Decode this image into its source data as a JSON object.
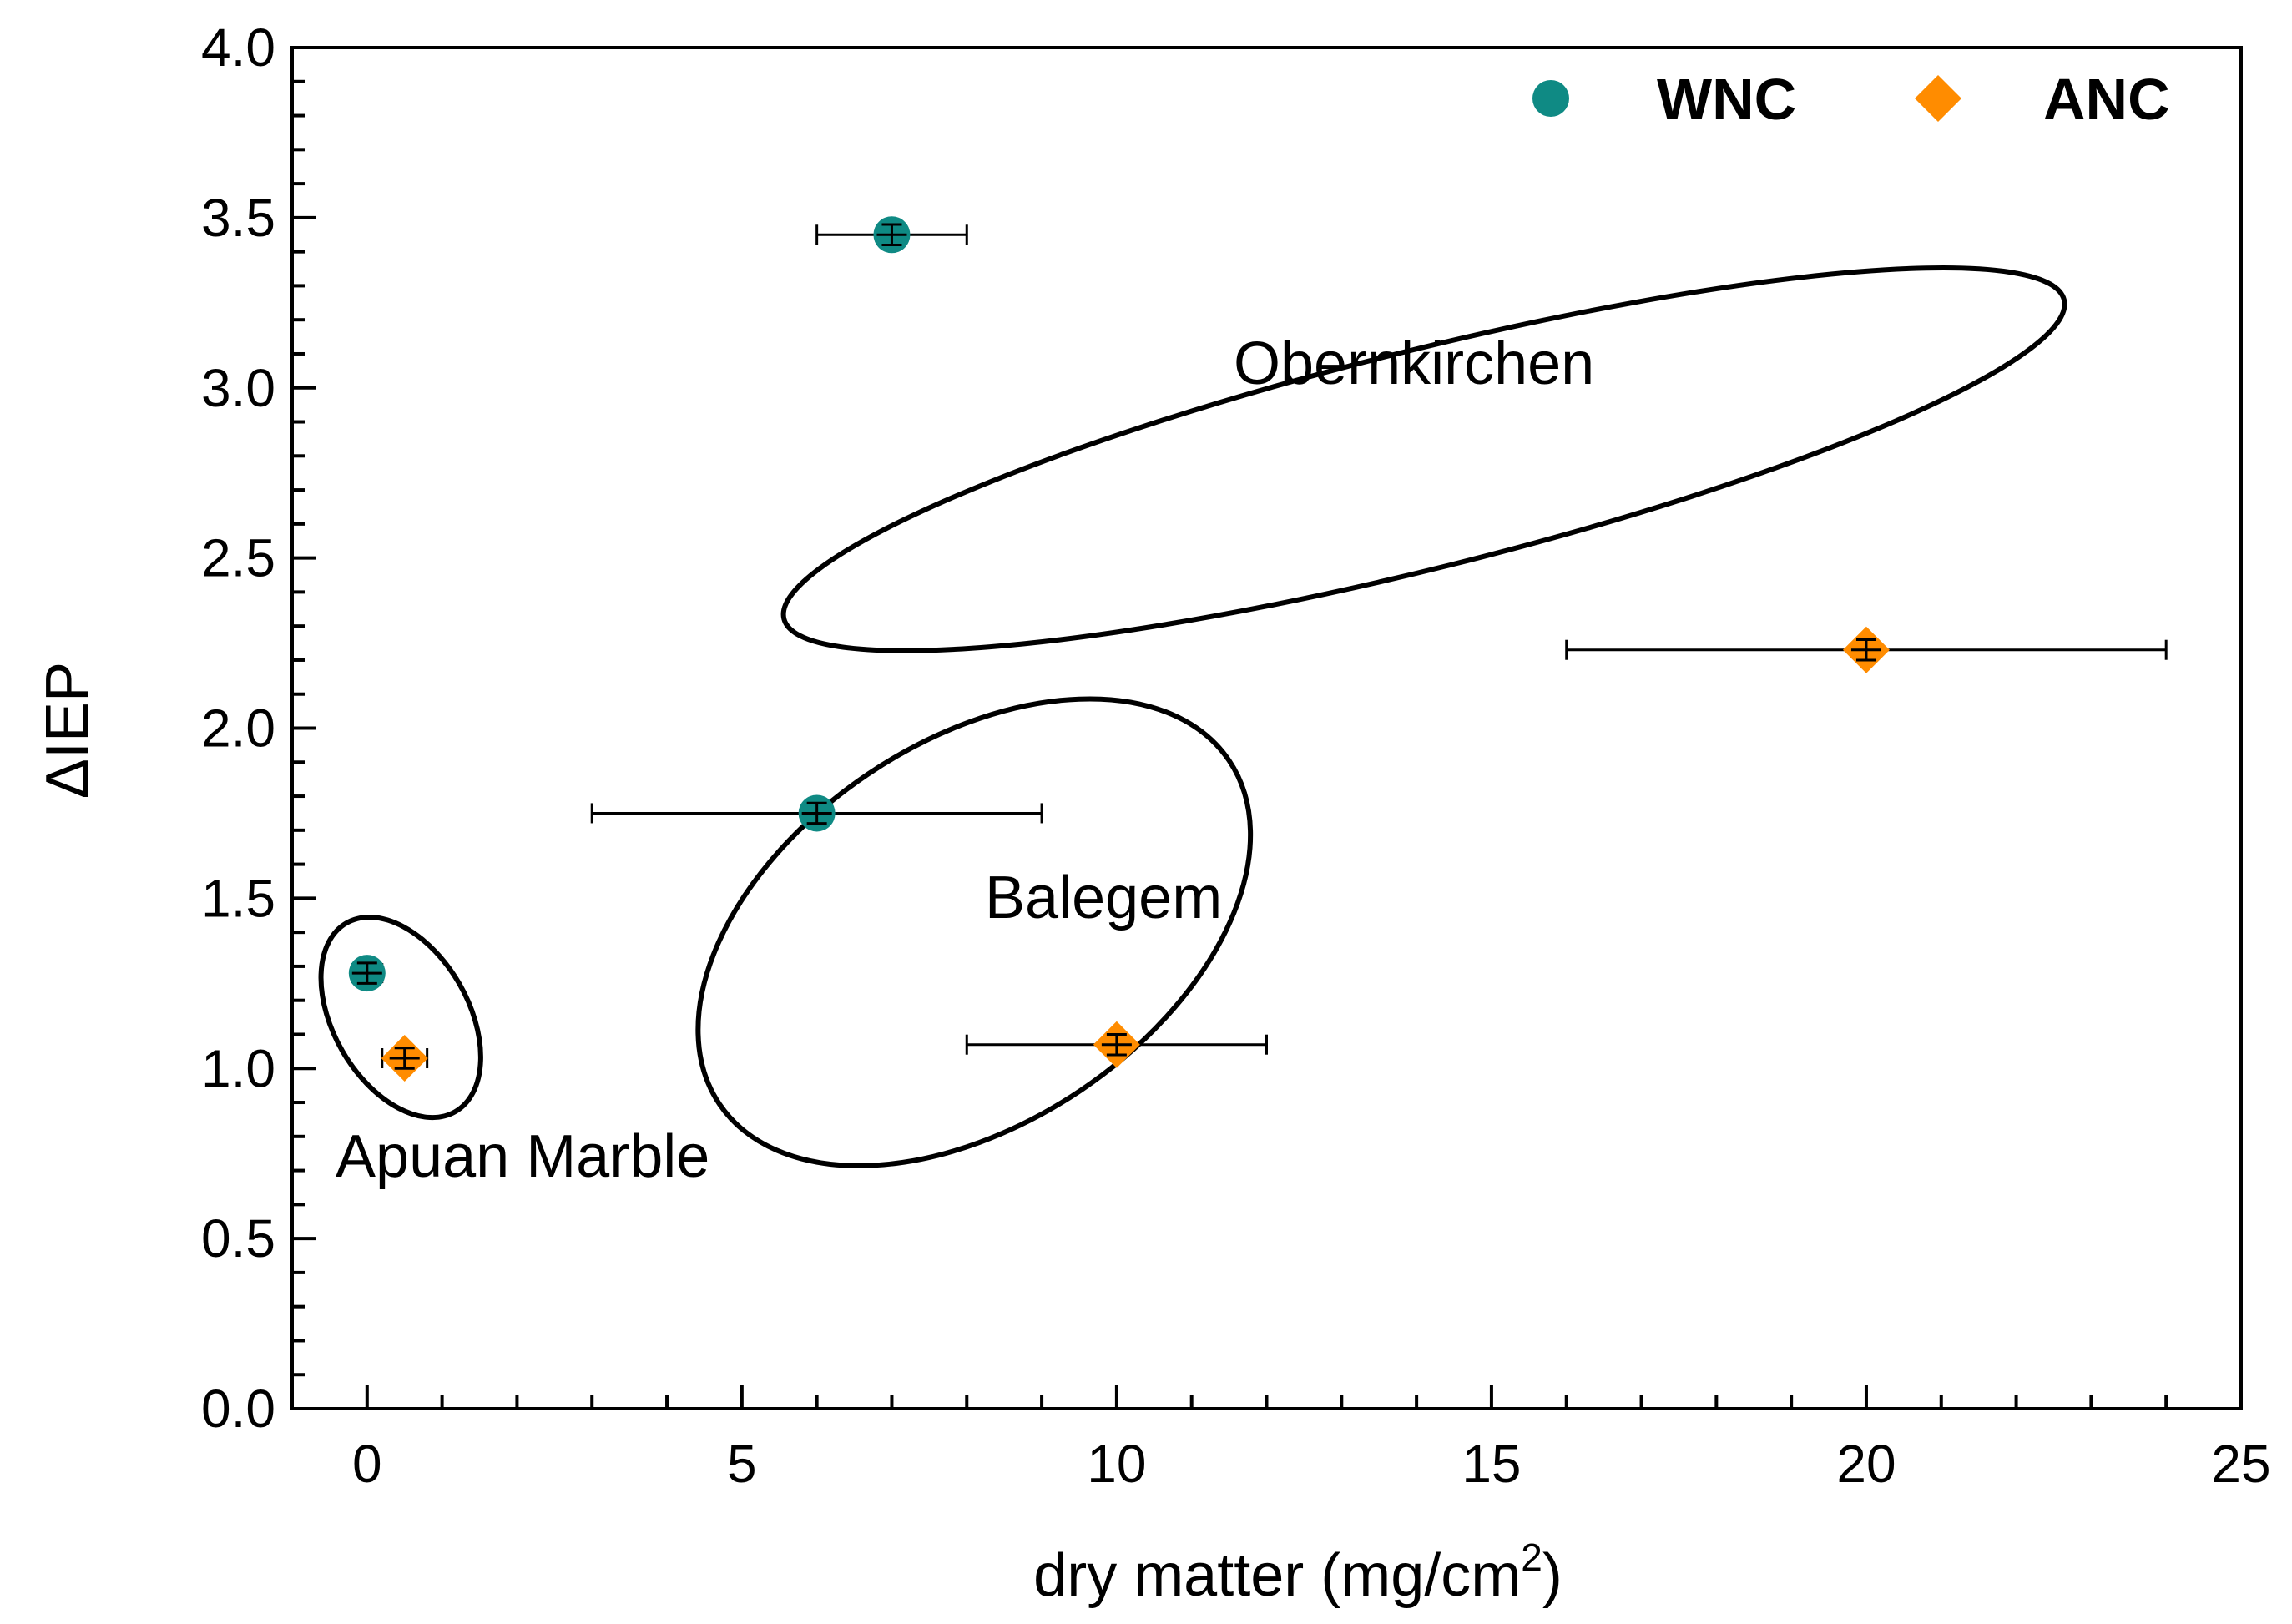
{
  "chart_data": {
    "type": "scatter",
    "title": "",
    "xlabel": "dry matter (mg/cm",
    "xlabel_superscript": "2",
    "xlabel_suffix": ")",
    "ylabel": "ΔIEP",
    "xlim": [
      -1,
      25
    ],
    "ylim": [
      0.0,
      4.0
    ],
    "x_ticks": [
      0,
      5,
      10,
      15,
      20,
      25
    ],
    "x_tick_labels": [
      "0",
      "5",
      "10",
      "15",
      "20",
      "25"
    ],
    "x_minor_step": 1,
    "y_ticks": [
      0.0,
      0.5,
      1.0,
      1.5,
      2.0,
      2.5,
      3.0,
      3.5,
      4.0
    ],
    "y_tick_labels": [
      "0.0",
      "0.5",
      "1.0",
      "1.5",
      "2.0",
      "2.5",
      "3.0",
      "3.5",
      "4.0"
    ],
    "y_minor_step": 0.1,
    "grid": false,
    "legend": {
      "placement": "top-right",
      "entries": [
        "WNC",
        "ANC"
      ]
    },
    "series": [
      {
        "name": "WNC",
        "marker": "circle",
        "color": "#0f8a84",
        "points": [
          {
            "x": 0,
            "y": 1.28,
            "xerr": 0.2,
            "yerr": 0.03
          },
          {
            "x": 6,
            "y": 1.75,
            "xerr": 3,
            "yerr": 0.03
          },
          {
            "x": 7,
            "y": 3.45,
            "xerr": 1,
            "yerr": 0.03
          }
        ]
      },
      {
        "name": "ANC",
        "marker": "diamond",
        "color": "#ff8c00",
        "points": [
          {
            "x": 0.5,
            "y": 1.03,
            "xerr": 0.3,
            "yerr": 0.03
          },
          {
            "x": 10,
            "y": 1.07,
            "xerr": 2,
            "yerr": 0.03
          },
          {
            "x": 20,
            "y": 2.23,
            "xerr": 4,
            "yerr": 0.03
          }
        ]
      }
    ],
    "groups": [
      {
        "label": "Apuan Marble",
        "cx": 0.45,
        "cy": 1.15,
        "rx": 0.9,
        "ry": 0.32,
        "angle_deg": -30
      },
      {
        "label": "Balegem",
        "cx": 8.1,
        "cy": 1.4,
        "rx": 4.1,
        "ry": 0.56,
        "angle_deg": -34
      },
      {
        "label": "Obernkirchen",
        "cx": 14.1,
        "cy": 2.79,
        "rx": 8.8,
        "ry": 0.32,
        "angle_deg": -14
      }
    ],
    "annotations": [
      "Apuan Marble",
      "Balegem",
      "Obernkirchen"
    ]
  }
}
